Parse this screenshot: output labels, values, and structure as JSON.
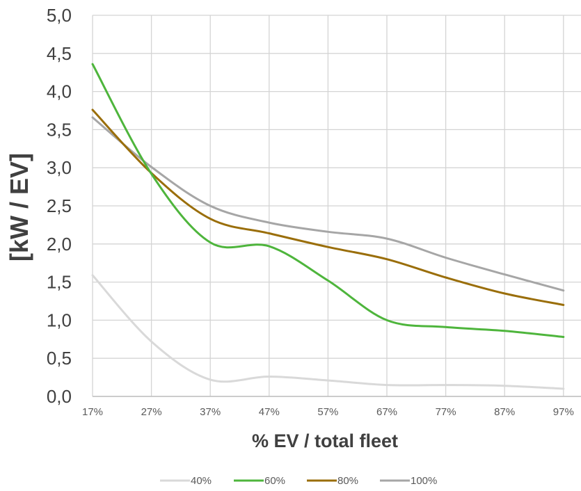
{
  "chart_data": {
    "type": "line",
    "xlabel": "% EV / total fleet",
    "ylabel": "[kW / EV]",
    "categories": [
      "17%",
      "27%",
      "37%",
      "47%",
      "57%",
      "67%",
      "77%",
      "87%",
      "97%"
    ],
    "y_ticks": [
      "0,0",
      "0,5",
      "1,0",
      "1,5",
      "2,0",
      "2,5",
      "3,0",
      "3,5",
      "4,0",
      "4,5",
      "5,0"
    ],
    "ylim": [
      0,
      5
    ],
    "grid": true,
    "legend_position": "bottom",
    "series": [
      {
        "name": "40%",
        "color": "#d9d9d9",
        "values": [
          1.59,
          0.72,
          0.22,
          0.26,
          0.21,
          0.15,
          0.15,
          0.14,
          0.1
        ]
      },
      {
        "name": "60%",
        "color": "#4eb53c",
        "values": [
          4.36,
          2.92,
          2.02,
          1.97,
          1.52,
          1.0,
          0.91,
          0.86,
          0.78
        ]
      },
      {
        "name": "80%",
        "color": "#9a6e0a",
        "values": [
          3.76,
          2.93,
          2.33,
          2.14,
          1.96,
          1.8,
          1.56,
          1.35,
          1.2
        ]
      },
      {
        "name": "100%",
        "color": "#a6a6a6",
        "values": [
          3.66,
          3.01,
          2.5,
          2.28,
          2.16,
          2.07,
          1.82,
          1.6,
          1.39
        ]
      }
    ]
  }
}
